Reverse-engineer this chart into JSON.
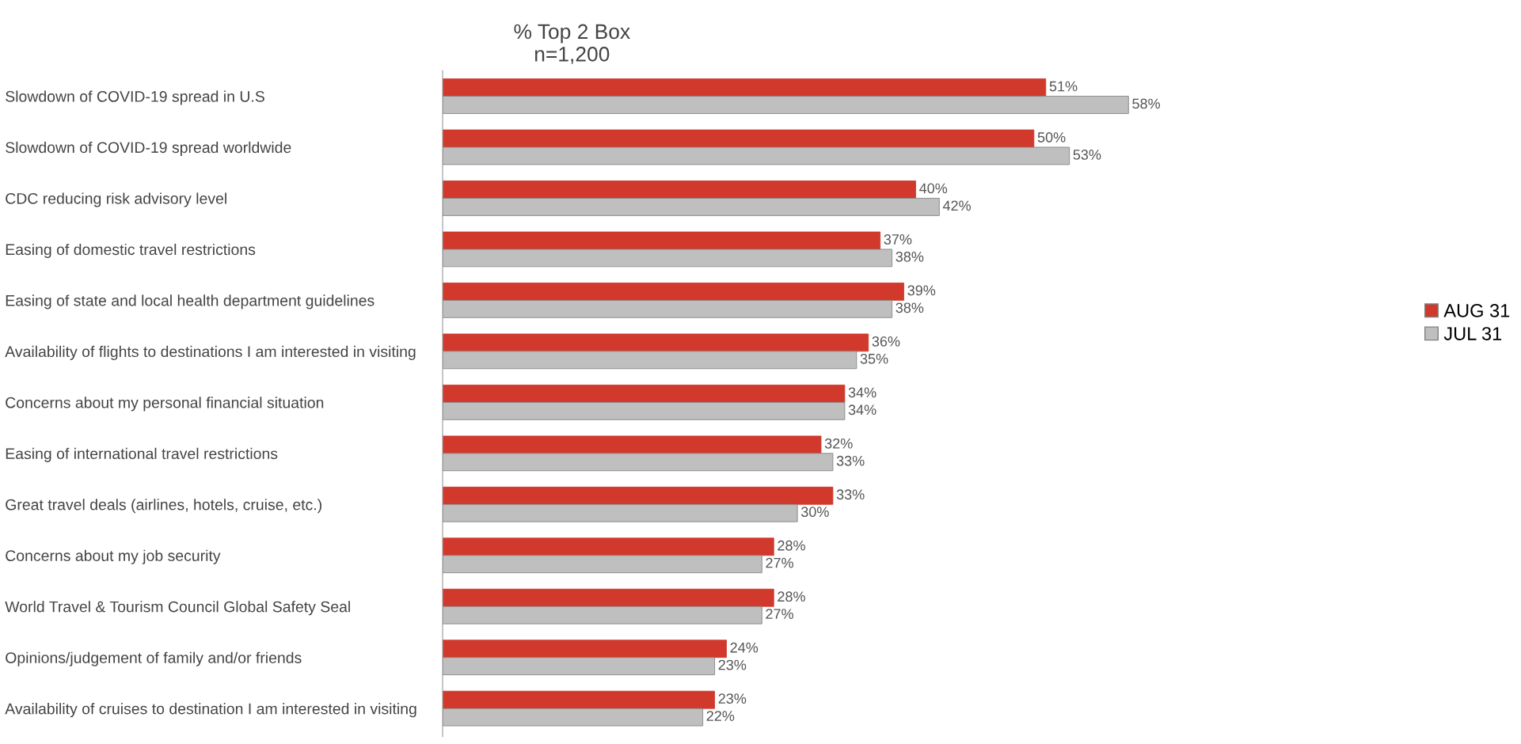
{
  "chart_data": {
    "type": "bar",
    "orientation": "horizontal",
    "title": "% Top 2 Box\nn=1,200",
    "categories": [
      "Slowdown of COVID-19 spread in U.S",
      "Slowdown of COVID-19 spread worldwide",
      "CDC reducing risk advisory level",
      "Easing of domestic travel restrictions",
      "Easing of state and local health department guidelines",
      "Availability of flights to destinations I am interested in visiting",
      "Concerns about my personal financial situation",
      "Easing of international travel restrictions",
      "Great travel deals (airlines, hotels, cruise, etc.)",
      "Concerns about my job security",
      "World Travel & Tourism Council Global Safety Seal",
      "Opinions/judgement of family and/or friends",
      "Availability of cruises to destination I am interested in visiting"
    ],
    "series": [
      {
        "name": "AUG 31",
        "color": "#d0392b",
        "values": [
          51,
          50,
          40,
          37,
          39,
          36,
          34,
          32,
          33,
          28,
          28,
          24,
          23
        ],
        "value_labels": [
          "51%",
          "50%",
          "40%",
          "37%",
          "39%",
          "36%",
          "34%",
          "32%",
          "33%",
          "28%",
          "28%",
          "24%",
          "23%"
        ]
      },
      {
        "name": "JUL 31",
        "color": "#bfbfbf",
        "values": [
          58,
          53,
          42,
          38,
          38,
          35,
          34,
          33,
          30,
          27,
          27,
          23,
          22
        ],
        "value_labels": [
          "58%",
          "53%",
          "42%",
          "38%",
          "38%",
          "35%",
          "34%",
          "33%",
          "30%",
          "27%",
          "27%",
          "23%",
          "22%"
        ]
      }
    ],
    "tick_labels": "y",
    "grid": false,
    "legend": "right"
  }
}
